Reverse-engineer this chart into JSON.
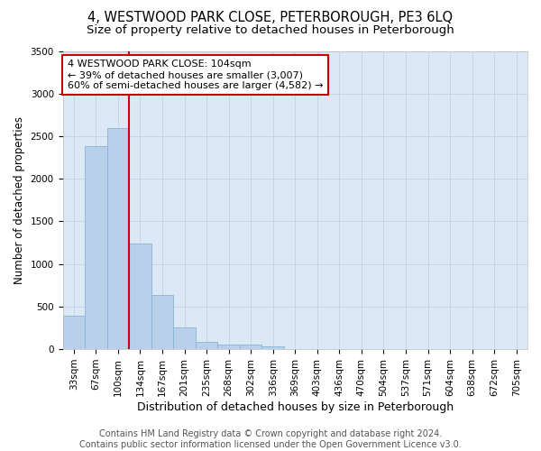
{
  "title": "4, WESTWOOD PARK CLOSE, PETERBOROUGH, PE3 6LQ",
  "subtitle": "Size of property relative to detached houses in Peterborough",
  "xlabel": "Distribution of detached houses by size in Peterborough",
  "ylabel": "Number of detached properties",
  "categories": [
    "33sqm",
    "67sqm",
    "100sqm",
    "134sqm",
    "167sqm",
    "201sqm",
    "235sqm",
    "268sqm",
    "302sqm",
    "336sqm",
    "369sqm",
    "403sqm",
    "436sqm",
    "470sqm",
    "504sqm",
    "537sqm",
    "571sqm",
    "604sqm",
    "638sqm",
    "672sqm",
    "705sqm"
  ],
  "values": [
    390,
    2380,
    2590,
    1240,
    640,
    255,
    90,
    55,
    50,
    35,
    0,
    0,
    0,
    0,
    0,
    0,
    0,
    0,
    0,
    0,
    0
  ],
  "bar_color": "#b8d0ea",
  "bar_edgecolor": "#8ab4d8",
  "grid_color": "#c8d4e8",
  "background_color": "#dce8f4",
  "annotation_text": "4 WESTWOOD PARK CLOSE: 104sqm\n← 39% of detached houses are smaller (3,007)\n60% of semi-detached houses are larger (4,582) →",
  "annotation_box_edgecolor": "#cc0000",
  "vline_color": "#cc0000",
  "ylim": [
    0,
    3500
  ],
  "yticks": [
    0,
    500,
    1000,
    1500,
    2000,
    2500,
    3000,
    3500
  ],
  "footnote": "Contains HM Land Registry data © Crown copyright and database right 2024.\nContains public sector information licensed under the Open Government Licence v3.0.",
  "title_fontsize": 10.5,
  "subtitle_fontsize": 9.5,
  "xlabel_fontsize": 9,
  "ylabel_fontsize": 8.5,
  "tick_fontsize": 7.5,
  "annotation_fontsize": 8,
  "footnote_fontsize": 7
}
